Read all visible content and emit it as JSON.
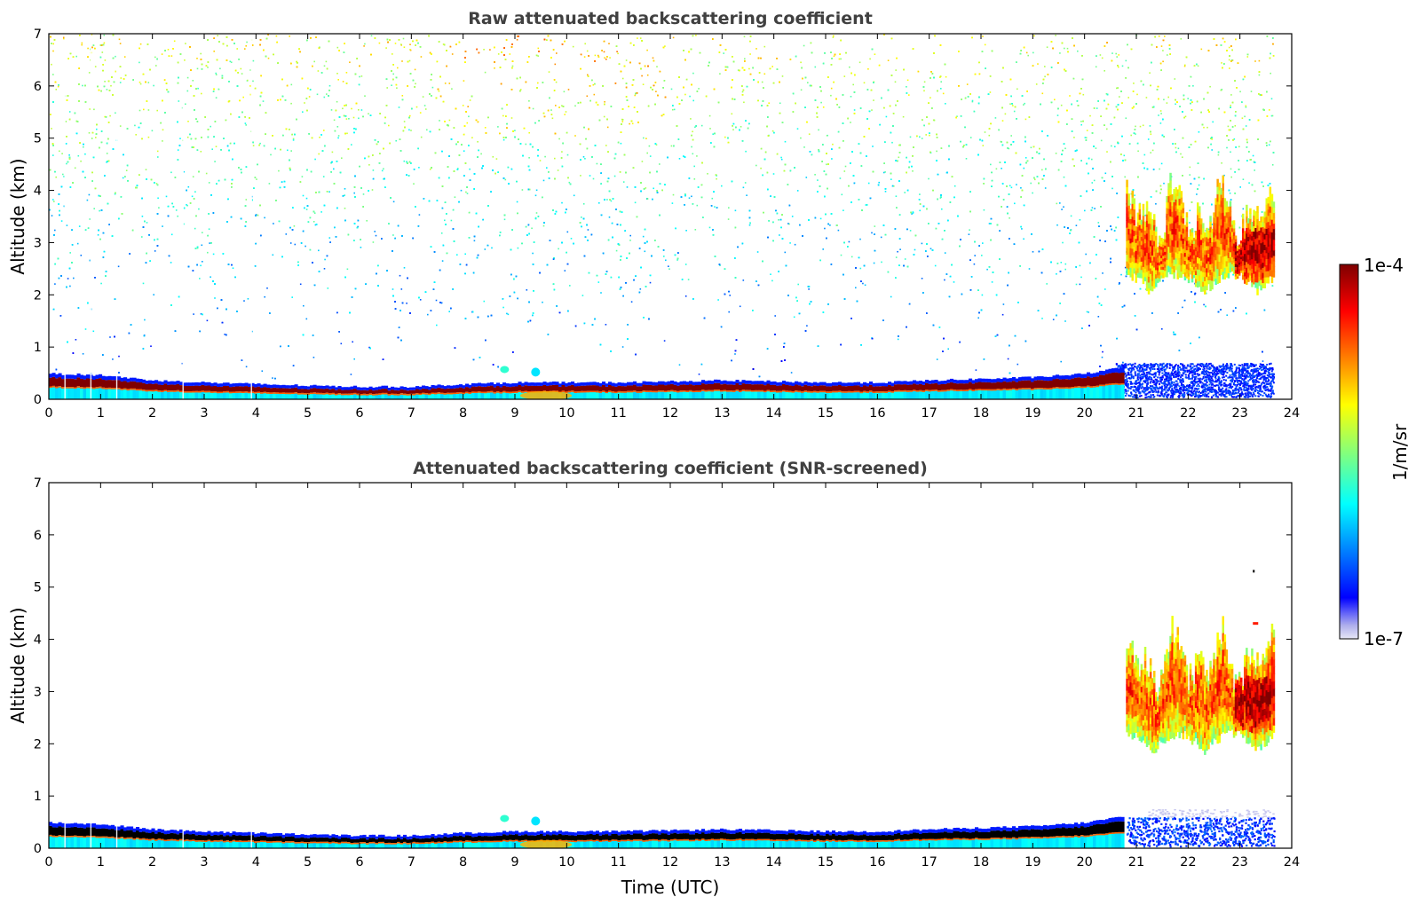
{
  "chart_data": [
    {
      "type": "heatmap",
      "title": "Raw attenuated backscattering coefficient",
      "xlabel": "",
      "ylabel": "Altitude (km)",
      "xlim": [
        0,
        24
      ],
      "ylim": [
        0,
        7
      ],
      "xticks": [
        "0",
        "1",
        "2",
        "3",
        "4",
        "5",
        "6",
        "7",
        "8",
        "9",
        "10",
        "11",
        "12",
        "13",
        "14",
        "15",
        "16",
        "17",
        "18",
        "19",
        "20",
        "21",
        "22",
        "23",
        "24"
      ],
      "yticks": [
        "0",
        "1",
        "2",
        "3",
        "4",
        "5",
        "6",
        "7"
      ],
      "data_end_time": 23.65,
      "boundary_layer": {
        "x": [
          0,
          1,
          2,
          3,
          4,
          5,
          6,
          7,
          8,
          9,
          10,
          11,
          12,
          13,
          14,
          15,
          16,
          17,
          18,
          19,
          20,
          20.6
        ],
        "top_km": [
          0.45,
          0.42,
          0.32,
          0.28,
          0.25,
          0.22,
          0.2,
          0.2,
          0.25,
          0.28,
          0.28,
          0.28,
          0.3,
          0.32,
          0.3,
          0.28,
          0.28,
          0.32,
          0.35,
          0.38,
          0.45,
          0.55
        ]
      },
      "cloud_layer": {
        "x_start": 20.8,
        "x_end": 23.65,
        "base_km": 1.8,
        "top_km": 4.2
      },
      "noise": "dense noise increasing with altitude",
      "grid": false
    },
    {
      "type": "heatmap",
      "title": "Attenuated backscattering coefficient (SNR-screened)",
      "xlabel": "Time (UTC)",
      "ylabel": "Altitude (km)",
      "xlim": [
        0,
        24
      ],
      "ylim": [
        0,
        7
      ],
      "xticks": [
        "0",
        "1",
        "2",
        "3",
        "4",
        "5",
        "6",
        "7",
        "8",
        "9",
        "10",
        "11",
        "12",
        "13",
        "14",
        "15",
        "16",
        "17",
        "18",
        "19",
        "20",
        "21",
        "22",
        "23",
        "24"
      ],
      "yticks": [
        "0",
        "1",
        "2",
        "3",
        "4",
        "5",
        "6",
        "7"
      ],
      "data_end_time": 23.65,
      "boundary_layer": {
        "x": [
          0,
          1,
          2,
          3,
          4,
          5,
          6,
          7,
          8,
          9,
          10,
          11,
          12,
          13,
          14,
          15,
          16,
          17,
          18,
          19,
          20,
          20.6
        ],
        "top_km": [
          0.45,
          0.42,
          0.32,
          0.28,
          0.25,
          0.22,
          0.2,
          0.2,
          0.25,
          0.28,
          0.28,
          0.28,
          0.3,
          0.32,
          0.3,
          0.28,
          0.28,
          0.32,
          0.35,
          0.38,
          0.45,
          0.55
        ]
      },
      "cloud_layer": {
        "x_start": 20.8,
        "x_end": 23.65,
        "base_km": 1.6,
        "top_km": 4.3
      },
      "noise": "screened out",
      "grid": false
    }
  ],
  "colorbar": {
    "label": "1/m/sr",
    "min_label": "1e-7",
    "max_label": "1e-4",
    "scale": "log",
    "colormap": "jet",
    "low_end_colors": [
      "#e6e6f5",
      "#c8c8ee",
      "#a6a6ea",
      "#8080f0"
    ]
  },
  "colors": {
    "title": "#404040",
    "saturation": "#7f0000",
    "screened_core": "#000000"
  }
}
